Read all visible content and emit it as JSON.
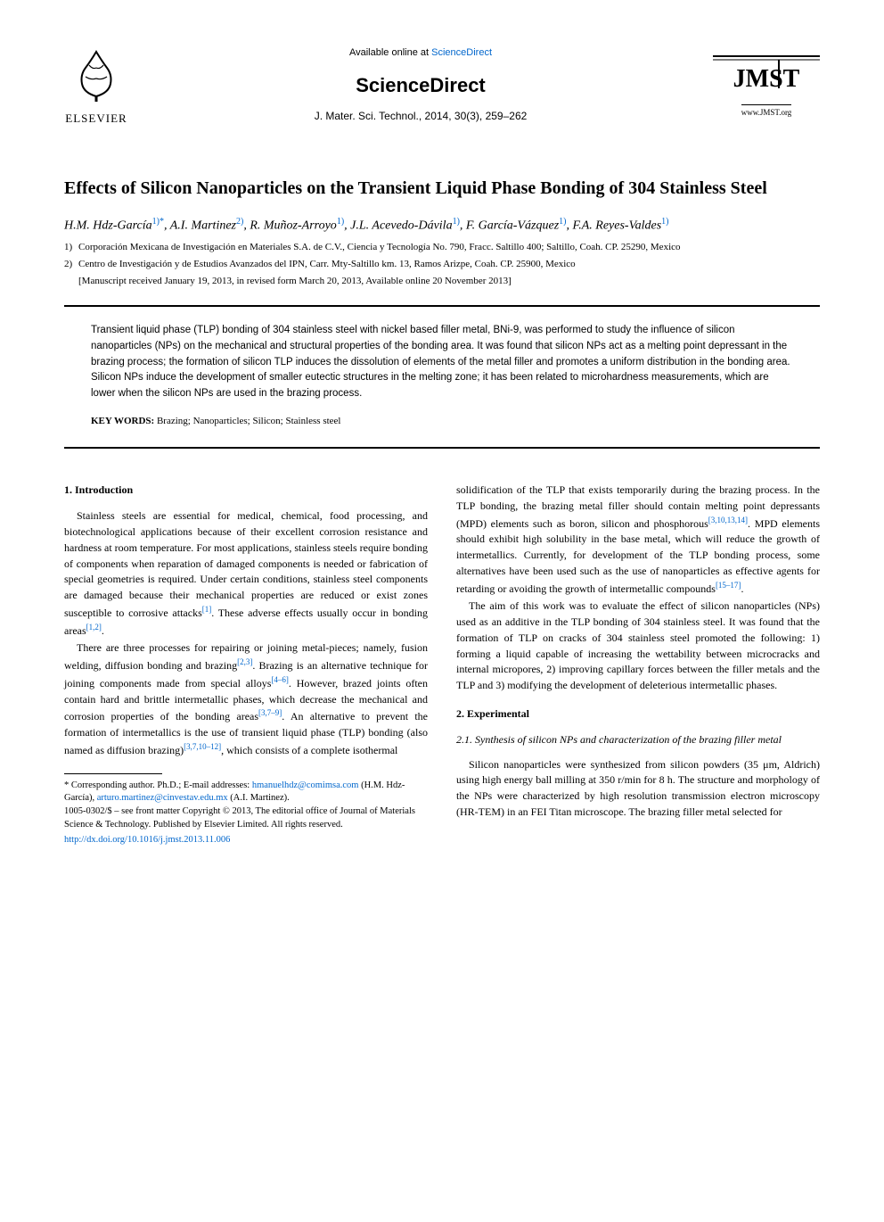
{
  "header": {
    "elsevier_label": "ELSEVIER",
    "available_prefix": "Available online at ",
    "available_link": "ScienceDirect",
    "brand": "ScienceDirect",
    "citation": "J. Mater. Sci. Technol., 2014, 30(3), 259–262",
    "jmst_label": "JMST",
    "jmst_url": "www.JMST.org",
    "colors": {
      "link": "#0066cc",
      "elsevier_orange": "#f58220",
      "text": "#000000",
      "background": "#ffffff"
    }
  },
  "title": "Effects of Silicon Nanoparticles on the Transient Liquid Phase Bonding of 304 Stainless Steel",
  "authors_line": "H.M. Hdz-García|1)*|, A.I. Martinez|2)|, R. Muñoz-Arroyo|1)|, J.L. Acevedo-Dávila|1)|, F. García-Vázquez|1)|, F.A. Reyes-Valdes|1)|",
  "affiliations": [
    {
      "num": "1)",
      "text": "Corporación Mexicana de Investigación en Materiales S.A. de C.V., Ciencia y Tecnología No. 790, Fracc. Saltillo 400; Saltillo, Coah. CP. 25290, Mexico"
    },
    {
      "num": "2)",
      "text": "Centro de Investigación y de Estudios Avanzados del IPN, Carr. Mty-Saltillo km. 13, Ramos Arizpe, Coah. CP. 25900, Mexico"
    }
  ],
  "manuscript_line": "[Manuscript received January 19, 2013, in revised form March 20, 2013, Available online 20 November 2013]",
  "abstract": "Transient liquid phase (TLP) bonding of 304 stainless steel with nickel based filler metal, BNi-9, was performed to study the influence of silicon nanoparticles (NPs) on the mechanical and structural properties of the bonding area. It was found that silicon NPs act as a melting point depressant in the brazing process; the formation of silicon TLP induces the dissolution of elements of the metal filler and promotes a uniform distribution in the bonding area. Silicon NPs induce the development of smaller eutectic structures in the melting zone; it has been related to microhardness measurements, which are lower when the silicon NPs are used in the brazing process.",
  "keywords_label": "KEY WORDS: ",
  "keywords": "Brazing; Nanoparticles; Silicon; Stainless steel",
  "sections": {
    "intro_head": "1. Introduction",
    "intro_p1": "Stainless steels are essential for medical, chemical, food processing, and biotechnological applications because of their excellent corrosion resistance and hardness at room temperature. For most applications, stainless steels require bonding of components when reparation of damaged components is needed or fabrication of special geometries is required. Under certain conditions, stainless steel components are damaged because their mechanical properties are reduced or exist zones susceptible to corrosive attacks",
    "intro_p1_ref": "[1]",
    "intro_p1_tail": ". These adverse effects usually occur in bonding areas",
    "intro_p1_ref2": "[1,2]",
    "intro_p1_tail2": ".",
    "intro_p2": "There are three processes for repairing or joining metal-pieces; namely, fusion welding, diffusion bonding and brazing",
    "intro_p2_ref": "[2,3]",
    "intro_p2_tail": ". Brazing is an alternative technique for joining components made from special alloys",
    "intro_p2_ref2": "[4–6]",
    "intro_p2_tail2": ". However, brazed joints often contain hard and brittle intermetallic phases, which decrease the mechanical and corrosion properties of the bonding areas",
    "intro_p2_ref3": "[3,7–9]",
    "intro_p2_tail3": ". An alternative to prevent the formation of intermetallics is the use of transient liquid phase (TLP) bonding (also named as diffusion brazing)",
    "intro_p2_ref4": "[3,7,10–12]",
    "intro_p2_tail4": ", which consists of a complete isothermal",
    "col2_p1": "solidification of the TLP that exists temporarily during the brazing process. In the TLP bonding, the brazing metal filler should contain melting point depressants (MPD) elements such as boron, silicon and phosphorous",
    "col2_p1_ref": "[3,10,13,14]",
    "col2_p1_tail": ". MPD elements should exhibit high solubility in the base metal, which will reduce the growth of intermetallics. Currently, for development of the TLP bonding process, some alternatives have been used such as the use of nanoparticles as effective agents for retarding or avoiding the growth of intermetallic compounds",
    "col2_p1_ref2": "[15–17]",
    "col2_p1_tail2": ".",
    "col2_p2": "The aim of this work was to evaluate the effect of silicon nanoparticles (NPs) used as an additive in the TLP bonding of 304 stainless steel. It was found that the formation of TLP on cracks of 304 stainless steel promoted the following: 1) forming a liquid capable of increasing the wettability between microcracks and internal micropores, 2) improving capillary forces between the filler metals and the TLP and 3) modifying the development of deleterious intermetallic phases.",
    "exp_head": "2. Experimental",
    "exp_sub": "2.1. Synthesis of silicon NPs and characterization of the brazing filler metal",
    "exp_p1": "Silicon nanoparticles were synthesized from silicon powders (35 μm, Aldrich) using high energy ball milling at 350 r/min for 8 h. The structure and morphology of the NPs were characterized by high resolution transmission electron microscopy (HR-TEM) in an FEI Titan microscope. The brazing filler metal selected for"
  },
  "footnote": {
    "corr_label": "* Corresponding author. Ph.D.;    E-mail addresses: ",
    "email1": "hmanuelhdz@comimsa.com",
    "email1_name": " (H.M. Hdz-García), ",
    "email2": "arturo.martinez@cinvestav.edu.mx",
    "email2_name": " (A.I. Martinez).",
    "copyright": "1005-0302/$ – see front matter Copyright © 2013, The editorial office of Journal of Materials Science & Technology. Published by Elsevier Limited. All rights reserved.",
    "doi": "http://dx.doi.org/10.1016/j.jmst.2013.11.006"
  }
}
